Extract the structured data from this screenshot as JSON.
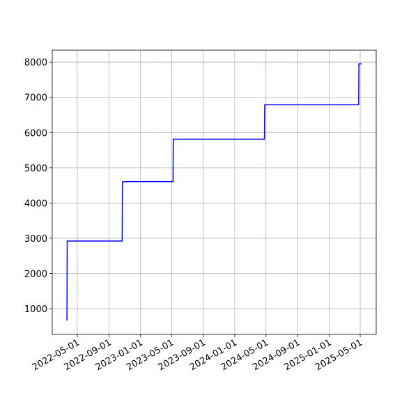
{
  "chart_data": {
    "type": "line",
    "x": [
      "2022-03-22",
      "2022-03-23",
      "2022-10-22",
      "2022-10-23",
      "2022-11-15",
      "2023-05-07",
      "2023-05-08",
      "2024-04-25",
      "2024-04-26",
      "2025-04-25",
      "2025-04-26",
      "2025-05-06"
    ],
    "series": [
      {
        "color": "#0000ff",
        "values": [
          660,
          2920,
          2920,
          4600,
          4610,
          4610,
          5810,
          5810,
          6790,
          6790,
          7950,
          7950
        ]
      }
    ],
    "xlim": [
      "2022-01-24",
      "2025-07-02"
    ],
    "xticks": [
      "2022-05-01",
      "2022-09-01",
      "2023-01-01",
      "2023-05-01",
      "2023-09-01",
      "2024-01-01",
      "2024-05-01",
      "2024-09-01",
      "2025-01-01",
      "2025-05-01"
    ],
    "ylim": [
      270,
      8340
    ],
    "yticks": [
      1000,
      2000,
      3000,
      4000,
      5000,
      6000,
      7000,
      8000
    ],
    "grid": true
  }
}
